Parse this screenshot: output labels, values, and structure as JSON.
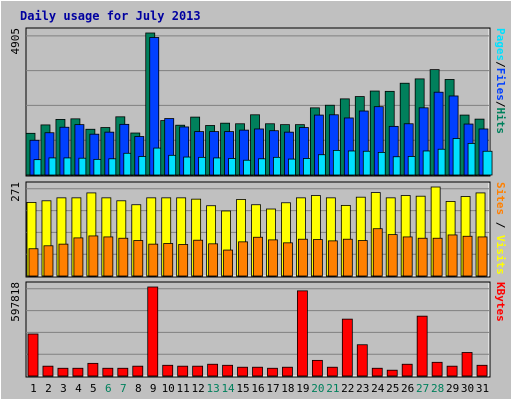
{
  "window": {
    "title": "Daily usage for July 2013"
  },
  "colors": {
    "background": "#c0c0c0",
    "panel": "#c0c0c0",
    "grid": "#808080",
    "hits": "#00805c",
    "files": "#0040ff",
    "pages": "#00e0ff",
    "visits": "#ffff00",
    "sites": "#ff8000",
    "kbytes": "#ff0000",
    "title": "#0000a0",
    "weekday": "#000000",
    "weekend": "#00805c"
  },
  "chart_data": [
    {
      "type": "bar",
      "name": "pages-files-hits",
      "title": "Daily usage for July 2013",
      "ymax_label": "4905",
      "ylim": [
        0,
        4905
      ],
      "categories": [
        "1",
        "2",
        "3",
        "4",
        "5",
        "6",
        "7",
        "8",
        "9",
        "10",
        "11",
        "12",
        "13",
        "14",
        "15",
        "16",
        "17",
        "18",
        "19",
        "20",
        "21",
        "22",
        "23",
        "24",
        "25",
        "26",
        "27",
        "28",
        "29",
        "30",
        "31"
      ],
      "weekend_days": [
        "6",
        "7",
        "13",
        "14",
        "20",
        "21",
        "27",
        "28"
      ],
      "side_label_parts": [
        {
          "text": "Pages",
          "color": "#00e0ff"
        },
        {
          "text": "/",
          "color": "#000000"
        },
        {
          "text": "Files",
          "color": "#0040ff"
        },
        {
          "text": "/",
          "color": "#000000"
        },
        {
          "text": "Hits",
          "color": "#00805c"
        }
      ],
      "series": [
        {
          "name": "Hits",
          "color": "#00805c",
          "values": [
            1440,
            1730,
            1920,
            1940,
            1580,
            1640,
            2010,
            1450,
            4905,
            1880,
            1720,
            2000,
            1710,
            1790,
            1770,
            2080,
            1770,
            1740,
            1740,
            2320,
            2410,
            2630,
            2710,
            2900,
            2890,
            3170,
            3320,
            3640,
            3300,
            2070,
            1930
          ]
        },
        {
          "name": "Files",
          "color": "#0040ff",
          "values": [
            1200,
            1460,
            1650,
            1740,
            1410,
            1480,
            1750,
            1330,
            4750,
            1950,
            1660,
            1500,
            1500,
            1500,
            1550,
            1590,
            1530,
            1480,
            1640,
            2070,
            2080,
            1970,
            2210,
            2360,
            1680,
            1770,
            2320,
            2860,
            2730,
            1760,
            1590
          ]
        },
        {
          "name": "Pages",
          "color": "#00e0ff",
          "values": [
            530,
            590,
            590,
            580,
            540,
            560,
            750,
            640,
            930,
            680,
            620,
            610,
            590,
            570,
            510,
            560,
            610,
            550,
            570,
            700,
            850,
            830,
            820,
            780,
            630,
            640,
            830,
            890,
            1260,
            1090,
            820
          ]
        }
      ]
    },
    {
      "type": "bar",
      "name": "sites-visits",
      "ymax_label": "271",
      "ylim": [
        0,
        271
      ],
      "categories": [
        "1",
        "2",
        "3",
        "4",
        "5",
        "6",
        "7",
        "8",
        "9",
        "10",
        "11",
        "12",
        "13",
        "14",
        "15",
        "16",
        "17",
        "18",
        "19",
        "20",
        "21",
        "22",
        "23",
        "24",
        "25",
        "26",
        "27",
        "28",
        "29",
        "30",
        "31"
      ],
      "side_label_parts": [
        {
          "text": "Sites",
          "color": "#ff8000"
        },
        {
          "text": " / ",
          "color": "#000000"
        },
        {
          "text": "Visits",
          "color": "#ffff00"
        }
      ],
      "series": [
        {
          "name": "Visits",
          "color": "#ffff00",
          "values": [
            224,
            229,
            238,
            238,
            253,
            238,
            229,
            217,
            238,
            238,
            238,
            234,
            214,
            198,
            233,
            217,
            204,
            223,
            238,
            245,
            238,
            215,
            240,
            254,
            238,
            245,
            243,
            271,
            227,
            242,
            253
          ]
        },
        {
          "name": "Sites",
          "color": "#ff8000",
          "values": [
            83,
            92,
            97,
            116,
            122,
            119,
            115,
            108,
            97,
            99,
            96,
            109,
            98,
            79,
            104,
            118,
            110,
            101,
            112,
            111,
            107,
            112,
            108,
            144,
            126,
            119,
            115,
            115,
            125,
            121,
            119
          ]
        }
      ]
    },
    {
      "type": "bar",
      "name": "kbytes",
      "ymax_label": "597818",
      "ylim": [
        0,
        597818
      ],
      "categories": [
        "1",
        "2",
        "3",
        "4",
        "5",
        "6",
        "7",
        "8",
        "9",
        "10",
        "11",
        "12",
        "13",
        "14",
        "15",
        "16",
        "17",
        "18",
        "19",
        "20",
        "21",
        "22",
        "23",
        "24",
        "25",
        "26",
        "27",
        "28",
        "29",
        "30",
        "31"
      ],
      "side_label_parts": [
        {
          "text": "KBytes",
          "color": "#ff0000"
        }
      ],
      "series": [
        {
          "name": "KBytes",
          "color": "#ff0000",
          "values": [
            282000,
            66000,
            52000,
            52000,
            85000,
            52000,
            52000,
            66000,
            597818,
            72000,
            66000,
            66000,
            79000,
            72000,
            59000,
            59000,
            52000,
            59000,
            572000,
            105000,
            59000,
            382000,
            210000,
            52000,
            39000,
            79000,
            402000,
            92000,
            66000,
            158000,
            72000
          ]
        }
      ]
    }
  ]
}
